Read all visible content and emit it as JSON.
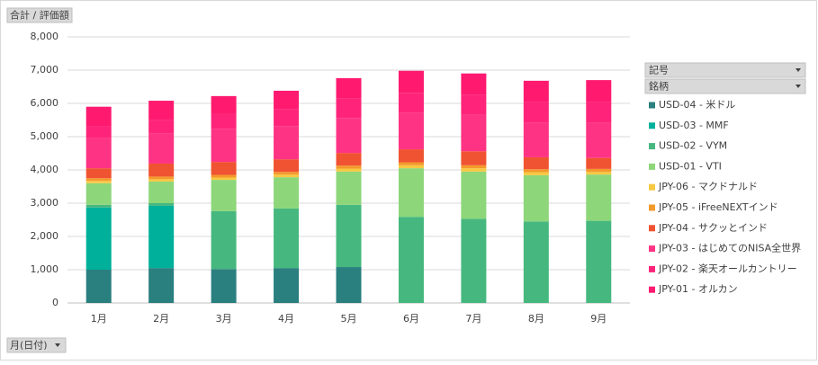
{
  "chart_data": {
    "type": "bar",
    "stacked": true,
    "y_field": "合計 / 評価額",
    "x_field": "月(日付)",
    "legend_fields": [
      "記号",
      "銘柄"
    ],
    "categories": [
      "1月",
      "2月",
      "3月",
      "4月",
      "5月",
      "6月",
      "7月",
      "8月",
      "9月"
    ],
    "ylim": [
      0,
      8000
    ],
    "yticks": [
      0,
      {
        "value": 1000,
        "label": "1,000"
      },
      {
        "value": 2000,
        "label": "2,000"
      },
      {
        "value": 3000,
        "label": "3,000"
      },
      {
        "value": 4000,
        "label": "4,000"
      },
      {
        "value": 5000,
        "label": "5,000"
      },
      {
        "value": 6000,
        "label": "6,000"
      },
      {
        "value": 7000,
        "label": "7,000"
      },
      {
        "value": 8000,
        "label": "8,000"
      }
    ],
    "grid": true,
    "series": [
      {
        "name": "USD-04 - 米ドル",
        "color": "#2a7f7f",
        "values": [
          1000,
          1050,
          1020,
          1050,
          1080,
          0,
          0,
          0,
          0
        ]
      },
      {
        "name": "USD-03 - MMF",
        "color": "#00b09a",
        "values": [
          1870,
          1870,
          0,
          0,
          0,
          0,
          0,
          0,
          0
        ]
      },
      {
        "name": "USD-02 - VYM",
        "color": "#46b87f",
        "values": [
          80,
          80,
          1740,
          1790,
          1870,
          2590,
          2530,
          2450,
          2470
        ]
      },
      {
        "name": "USD-01 - VTI",
        "color": "#8dd67a",
        "values": [
          650,
          650,
          940,
          940,
          1000,
          1460,
          1420,
          1390,
          1390
        ]
      },
      {
        "name": "JPY-06 - マクドナルド",
        "color": "#f7c843",
        "values": [
          70,
          70,
          70,
          80,
          90,
          90,
          100,
          90,
          80
        ]
      },
      {
        "name": "JPY-05 - iFreeNEXTインド",
        "color": "#f39a2c",
        "values": [
          80,
          80,
          80,
          80,
          90,
          90,
          90,
          90,
          90
        ]
      },
      {
        "name": "JPY-04 - サクッとインド",
        "color": "#f05331",
        "values": [
          300,
          390,
          390,
          380,
          380,
          390,
          420,
          360,
          330
        ]
      },
      {
        "name": "JPY-03 - はじめてのNISA全世界",
        "color": "#ff3384",
        "values": [
          900,
          900,
          1000,
          1000,
          1050,
          1100,
          1100,
          1050,
          1050
        ]
      },
      {
        "name": "JPY-02 - 楽天オールカントリー",
        "color": "#ff247a",
        "values": [
          350,
          400,
          450,
          500,
          600,
          600,
          600,
          600,
          620
        ]
      },
      {
        "name": "JPY-01 - オルカン",
        "color": "#ff1a70",
        "values": [
          600,
          590,
          530,
          560,
          600,
          660,
          640,
          650,
          670
        ]
      }
    ]
  }
}
